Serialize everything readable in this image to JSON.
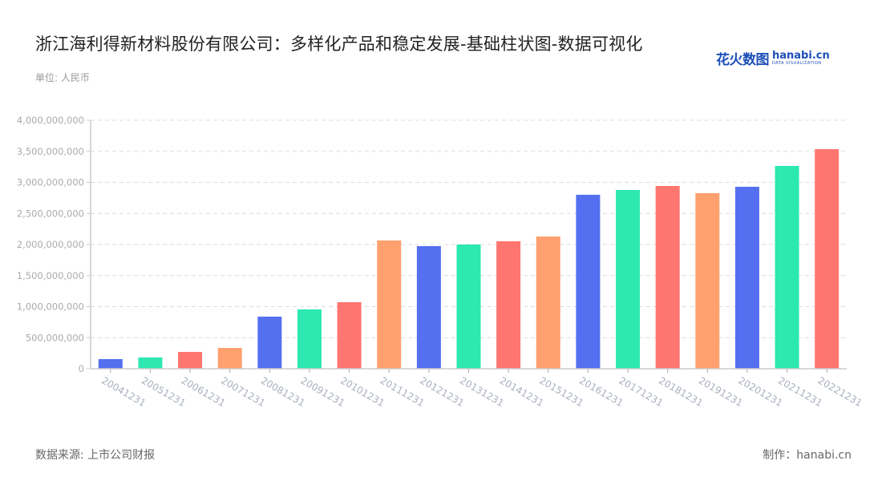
{
  "header": {
    "title": "浙江海利得新材料股份有限公司：多样化产品和稳定发展-基础柱状图-数据可视化",
    "unit": "单位: 人民币",
    "logo_cn": "花火数图",
    "logo_en": "hanabi.cn",
    "logo_sub": "DATA VISUALIZATION"
  },
  "footer": {
    "source": "数据来源: 上市公司财报",
    "credit": "制作：hanabi.cn"
  },
  "colors": {
    "palette": [
      "#5470f0",
      "#2de8b0",
      "#ff7570",
      "#ffa06e"
    ],
    "axis": "#cccccc",
    "grid": "#dddddd",
    "tick_label": "#aaaaaa"
  },
  "chart_data": {
    "type": "bar",
    "title": "浙江海利得新材料股份有限公司：多样化产品和稳定发展-基础柱状图-数据可视化",
    "xlabel": "",
    "ylabel": "单位: 人民币",
    "ylim": [
      0,
      4000000000
    ],
    "yticks": [
      0,
      500000000,
      1000000000,
      1500000000,
      2000000000,
      2500000000,
      3000000000,
      3500000000,
      4000000000
    ],
    "ytick_labels": [
      "0",
      "500,000,000",
      "1,000,000,000",
      "1,500,000,000",
      "2,000,000,000",
      "2,500,000,000",
      "3,000,000,000",
      "3,500,000,000",
      "4,000,000,000"
    ],
    "grid": true,
    "legend": null,
    "categories": [
      "20041231",
      "20051231",
      "20061231",
      "20071231",
      "20081231",
      "20091231",
      "20101231",
      "20111231",
      "20121231",
      "20131231",
      "20141231",
      "20151231",
      "20161231",
      "20171231",
      "20181231",
      "20191231",
      "20201231",
      "20211231",
      "20221231"
    ],
    "values": [
      155000000,
      181000000,
      271000000,
      335000000,
      839000000,
      955000000,
      1071000000,
      2065000000,
      1974000000,
      2000000000,
      2052000000,
      2129000000,
      2800000000,
      2877000000,
      2942000000,
      2826000000,
      2929000000,
      3265000000,
      3535000000
    ]
  }
}
